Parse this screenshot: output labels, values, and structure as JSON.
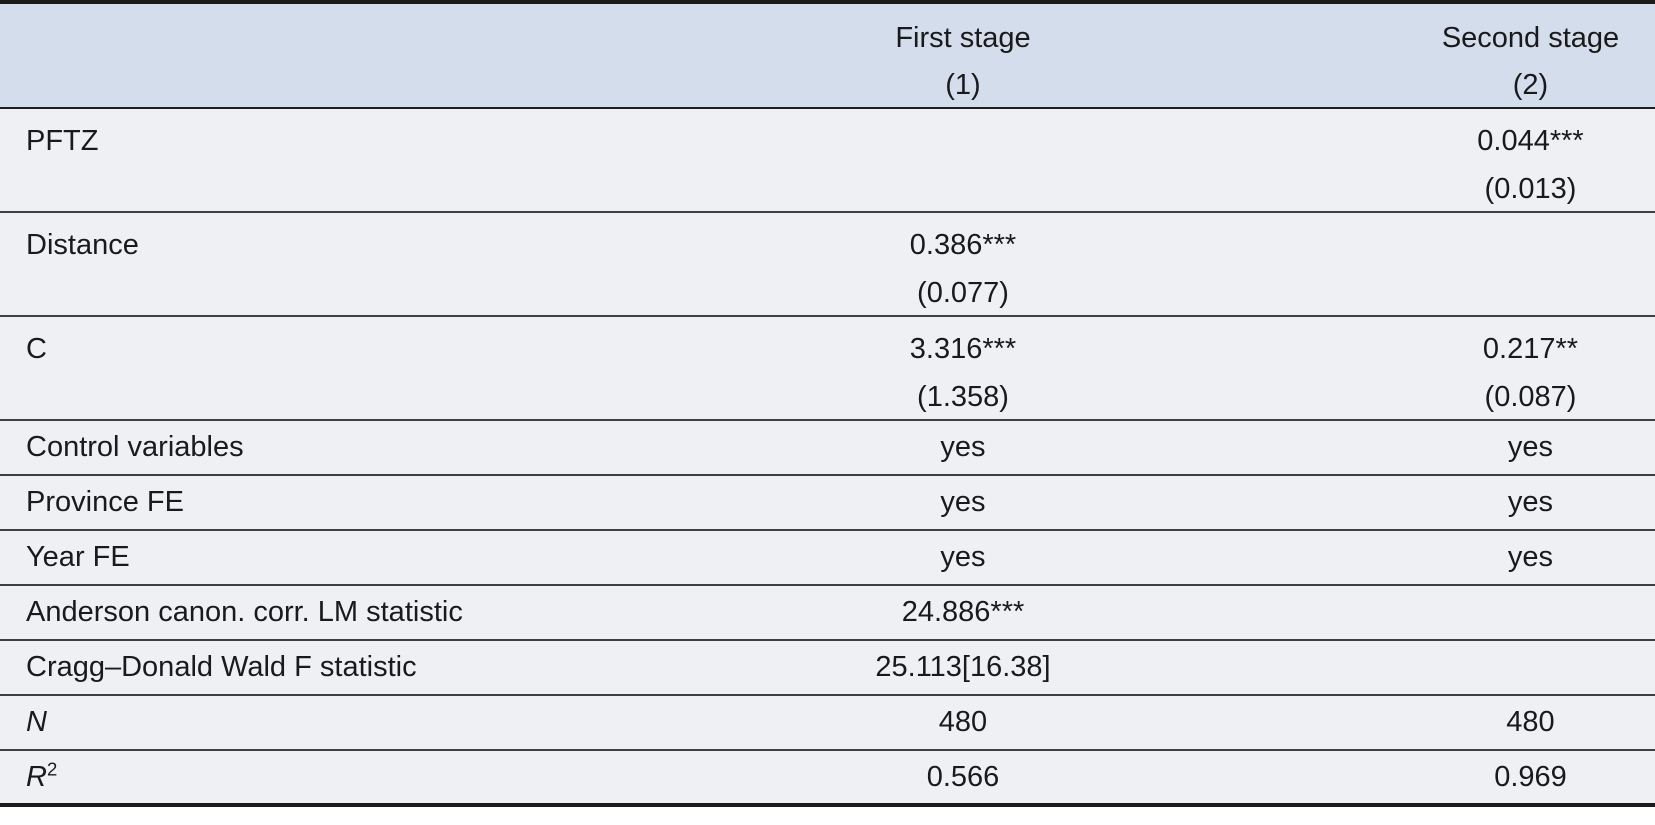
{
  "table": {
    "header": {
      "col1_title": "First stage",
      "col1_number": "(1)",
      "col2_title": "Second stage",
      "col2_number": "(2)"
    },
    "coef_rows": [
      {
        "label": "PFTZ",
        "col1_coef": "",
        "col1_se": "",
        "col2_coef": "0.044***",
        "col2_se": "(0.013)"
      },
      {
        "label": "Distance",
        "col1_coef": "0.386***",
        "col1_se": "(0.077)",
        "col2_coef": "",
        "col2_se": ""
      },
      {
        "label": "C",
        "col1_coef": "3.316***",
        "col1_se": "(1.358)",
        "col2_coef": "0.217**",
        "col2_se": "(0.087)"
      }
    ],
    "info_rows": [
      {
        "label": "Control variables",
        "col1": "yes",
        "col2": "yes"
      },
      {
        "label": "Province FE",
        "col1": "yes",
        "col2": "yes"
      },
      {
        "label": "Year FE",
        "col1": "yes",
        "col2": "yes"
      },
      {
        "label": "Anderson canon. corr. LM statistic",
        "col1": "24.886***",
        "col2": ""
      },
      {
        "label": "Cragg–Donald Wald F statistic",
        "col1": "25.113[16.38]",
        "col2": ""
      }
    ],
    "stat_rows": [
      {
        "label": "N",
        "sup": "",
        "col1": "480",
        "col2": "480"
      },
      {
        "label": "R",
        "sup": "2",
        "col1": "0.566",
        "col2": "0.969"
      }
    ],
    "colors": {
      "header_bg": "#d3ddec",
      "row_bg": "#eef0f4",
      "border_dark": "#1b1b1b",
      "divider": "#3f3f3f",
      "text": "#1a1a1a"
    }
  }
}
